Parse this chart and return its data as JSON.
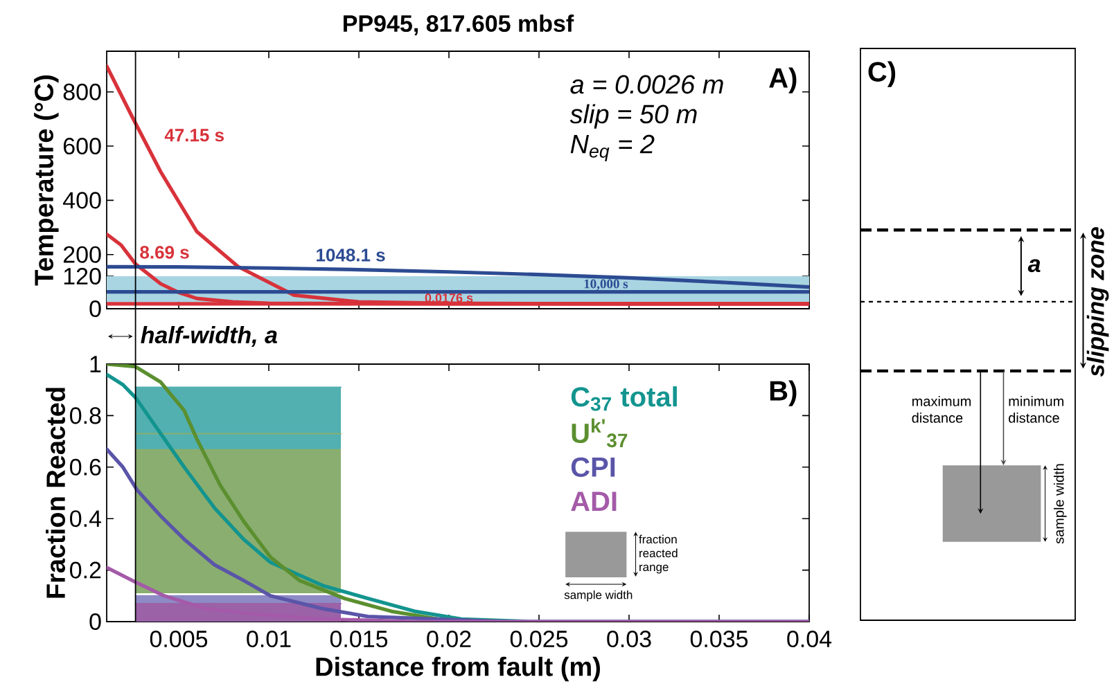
{
  "chart_data": [
    {
      "type": "line",
      "title": "PP945, 817.605 mbsf",
      "ylabel": "Temperature (°C)",
      "xlim": [
        0.001,
        0.04
      ],
      "ylim": [
        0,
        950
      ],
      "xticks": [
        0.005,
        0.01,
        0.015,
        0.02,
        0.025,
        0.03,
        0.035,
        0.04
      ],
      "yticks": [
        0,
        120,
        200,
        400,
        600,
        800
      ],
      "tick_labels": "y",
      "bands": [
        {
          "axis": "y",
          "from": 25,
          "to": 120,
          "color": "#a9d5e2"
        }
      ],
      "ref_lines": [
        {
          "axis": "x",
          "value": 0.0026,
          "label": "half-width, a",
          "color": "#000000"
        }
      ],
      "annotations": [
        "a = 0.0026 m",
        "slip = 50 m",
        "N$_{eq}$ = 2",
        "A)"
      ],
      "series": [
        {
          "name": "0.0176 s",
          "color": "#d8323a",
          "x": [
            0.001,
            0.02,
            0.04
          ],
          "values": [
            18,
            18,
            18
          ]
        },
        {
          "name": "8.69 s",
          "color": "#d8323a",
          "x": [
            0.001,
            0.0018,
            0.0026,
            0.004,
            0.005,
            0.006,
            0.008,
            0.01,
            0.02,
            0.04
          ],
          "values": [
            275,
            235,
            165,
            92,
            60,
            38,
            25,
            20,
            18,
            18
          ]
        },
        {
          "name": "47.15 s",
          "color": "#d8323a",
          "x": [
            0.001,
            0.0024,
            0.004,
            0.006,
            0.0083,
            0.0114,
            0.015,
            0.02,
            0.03,
            0.04
          ],
          "values": [
            895,
            710,
            505,
            285,
            155,
            50,
            25,
            20,
            18,
            18
          ]
        },
        {
          "name": "1048.1 s",
          "color": "#2c4b92",
          "x": [
            0.001,
            0.005,
            0.01,
            0.015,
            0.02,
            0.025,
            0.03,
            0.035,
            0.04
          ],
          "values": [
            155,
            154,
            150,
            144,
            136,
            126,
            114,
            98,
            80
          ]
        },
        {
          "name": "10,000 s",
          "color": "#2c4b92",
          "x": [
            0.001,
            0.02,
            0.04
          ],
          "values": [
            62,
            62,
            62
          ]
        }
      ]
    },
    {
      "type": "line",
      "xlabel": "Distance from fault (m)",
      "ylabel": "Fraction Reacted",
      "xlim": [
        0.001,
        0.04
      ],
      "ylim": [
        0,
        1
      ],
      "xticks": [
        0.005,
        0.01,
        0.015,
        0.02,
        0.025,
        0.03,
        0.035,
        0.04
      ],
      "yticks": [
        0,
        0.2,
        0.4,
        0.6,
        0.8,
        1
      ],
      "legend": "top right",
      "ref_lines": [
        {
          "axis": "x",
          "value": 0.0026,
          "color": "#000000"
        }
      ],
      "annotations": [
        "B)",
        "fraction reacted range",
        "sample width"
      ],
      "series": [
        {
          "type": "line",
          "color": "#8aae6f",
          "x": [
            0.0026,
            0.014
          ],
          "values": [
            0.73,
            0.73
          ],
          "upper": [
            0.73,
            0.73
          ],
          "lower": [
            0.11,
            0.11
          ]
        },
        {
          "type": "line",
          "color": "#52b0b1",
          "x": [
            0.0026,
            0.014
          ],
          "values": [
            0.91,
            0.91
          ],
          "upper": [
            0.91,
            0.91
          ],
          "lower": [
            0.67,
            0.67
          ]
        },
        {
          "type": "line",
          "color": "#8d8ac6",
          "x": [
            0.0026,
            0.014
          ],
          "values": [
            0.1,
            0.1
          ],
          "upper": [
            0.1,
            0.1
          ],
          "lower": [
            0,
            0
          ]
        },
        {
          "type": "line",
          "color": "#9b62a7",
          "x": [
            0.0026,
            0.014
          ],
          "values": [
            0.07,
            0.07
          ],
          "upper": [
            0.07,
            0.07
          ],
          "lower": [
            0,
            0
          ]
        },
        {
          "name": "C$_{37}$ total",
          "color": "#13948f",
          "x": [
            0.001,
            0.0019,
            0.0026,
            0.004,
            0.0053,
            0.007,
            0.0086,
            0.0101,
            0.013,
            0.0155,
            0.0181,
            0.0207,
            0.0245,
            0.03,
            0.04
          ],
          "values": [
            0.96,
            0.92,
            0.87,
            0.73,
            0.6,
            0.44,
            0.32,
            0.23,
            0.14,
            0.09,
            0.04,
            0.01,
            0,
            0,
            0
          ]
        },
        {
          "name": "U$^{k'}$$_{37}$",
          "color": "#5b8f2f",
          "x": [
            0.001,
            0.0026,
            0.004,
            0.0053,
            0.006,
            0.0073,
            0.0086,
            0.0101,
            0.0117,
            0.0142,
            0.0168,
            0.0194,
            0.0232
          ],
          "values": [
            1.0,
            0.99,
            0.93,
            0.82,
            0.71,
            0.53,
            0.39,
            0.25,
            0.16,
            0.09,
            0.04,
            0.01,
            0
          ]
        },
        {
          "name": "CPI",
          "color": "#5a55a8",
          "x": [
            0.001,
            0.0019,
            0.0027,
            0.004,
            0.0053,
            0.007,
            0.0086,
            0.0101,
            0.013,
            0.0155,
            0.0194,
            0.0232,
            0.03,
            0.04
          ],
          "values": [
            0.67,
            0.6,
            0.51,
            0.41,
            0.32,
            0.22,
            0.16,
            0.1,
            0.05,
            0.02,
            0.01,
            0,
            0,
            0
          ]
        },
        {
          "name": "ADI",
          "color": "#a45aa8",
          "x": [
            0.001,
            0.0027,
            0.0042,
            0.0065,
            0.0091,
            0.013,
            0.0181,
            0.0232,
            0.03,
            0.04
          ],
          "values": [
            0.21,
            0.15,
            0.1,
            0.05,
            0.03,
            0.01,
            0,
            0,
            0,
            0
          ]
        }
      ]
    },
    {
      "type": "other",
      "annotations": [
        "C)",
        "a",
        "maximum distance",
        "minimum distance",
        "sample width",
        "slipping zone"
      ]
    }
  ]
}
